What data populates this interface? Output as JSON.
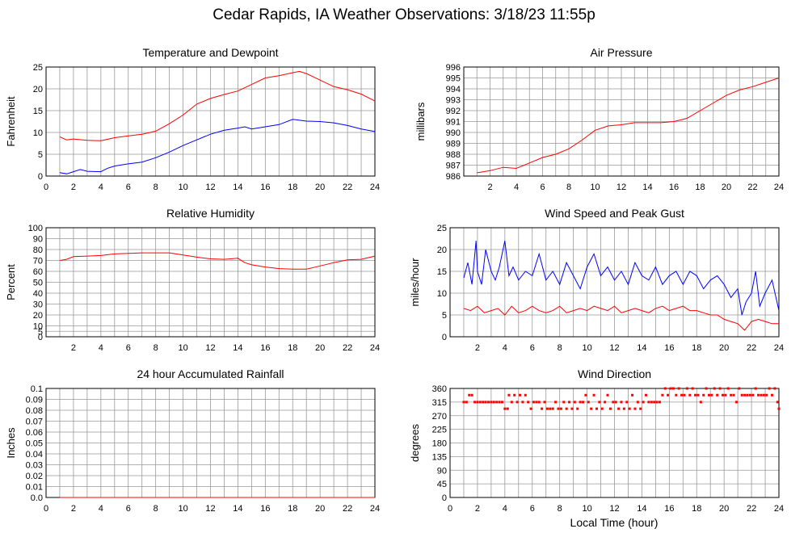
{
  "page_title": "Cedar Rapids, IA Weather Observations: 3/18/23 11:55p",
  "x_axis_label": "Local Time (hour)",
  "colors": {
    "red": "#ff0000",
    "blue": "#0000ff",
    "grid": "#999999",
    "frame": "#000000"
  },
  "chart_data": [
    {
      "id": "temp",
      "type": "line",
      "title": "Temperature and Dewpoint",
      "ylabel": "Fahrenheit",
      "xlim": [
        0,
        24
      ],
      "ylim": [
        0,
        25
      ],
      "x_ticks": [
        0,
        2,
        4,
        6,
        8,
        10,
        12,
        14,
        16,
        18,
        20,
        22,
        24
      ],
      "y_ticks": [
        0,
        5,
        10,
        15,
        20,
        25
      ],
      "grid": true,
      "series": [
        {
          "color": "#ff0000",
          "x": [
            1,
            1.5,
            2,
            3,
            4,
            5,
            6,
            7,
            8,
            9,
            10,
            11,
            12,
            13,
            14,
            15,
            16,
            17,
            18,
            18.5,
            19,
            20,
            21,
            22,
            23,
            24
          ],
          "y": [
            9,
            8.3,
            8.5,
            8.2,
            8.1,
            8.8,
            9.2,
            9.6,
            10.3,
            12,
            14,
            16.5,
            17.8,
            18.7,
            19.5,
            21,
            22.5,
            23,
            23.7,
            24,
            23.5,
            22,
            20.5,
            19.8,
            18.8,
            17.2
          ]
        },
        {
          "color": "#0000ff",
          "x": [
            1,
            1.5,
            2,
            2.5,
            3,
            4,
            4.5,
            5,
            6,
            7,
            8,
            9,
            10,
            11,
            12,
            13,
            14,
            14.5,
            15,
            16,
            17,
            18,
            19,
            20,
            21,
            22,
            23,
            24
          ],
          "y": [
            0.8,
            0.5,
            1,
            1.5,
            1.1,
            1,
            1.8,
            2.3,
            2.8,
            3.2,
            4.2,
            5.5,
            7,
            8.3,
            9.6,
            10.5,
            11,
            11.3,
            10.8,
            11.3,
            11.8,
            13,
            12.6,
            12.5,
            12.2,
            11.6,
            10.8,
            10.2
          ]
        }
      ]
    },
    {
      "id": "pressure",
      "type": "line",
      "title": "Air Pressure",
      "ylabel": "millibars",
      "xlim": [
        0,
        24
      ],
      "ylim": [
        986,
        996
      ],
      "x_ticks": [
        2,
        4,
        6,
        8,
        10,
        12,
        14,
        16,
        18,
        20,
        22,
        24
      ],
      "y_ticks": [
        986,
        987,
        988,
        989,
        990,
        991,
        992,
        993,
        994,
        995,
        996
      ],
      "grid": true,
      "series": [
        {
          "color": "#ff0000",
          "x": [
            1,
            2,
            3,
            4,
            5,
            6,
            7,
            8,
            9,
            10,
            11,
            12,
            13,
            14,
            15,
            16,
            17,
            18,
            19,
            20,
            21,
            22,
            23,
            24
          ],
          "y": [
            986.3,
            986.5,
            986.8,
            986.7,
            987.2,
            987.7,
            988,
            988.5,
            989.3,
            990.2,
            990.6,
            990.7,
            990.9,
            990.9,
            990.9,
            991,
            991.3,
            992,
            992.7,
            993.4,
            993.9,
            994.2,
            994.6,
            995
          ]
        }
      ]
    },
    {
      "id": "humidity",
      "type": "line",
      "title": "Relative Humidity",
      "ylabel": "Percent",
      "xlim": [
        0,
        24
      ],
      "ylim": [
        0,
        100
      ],
      "x_ticks": [
        2,
        4,
        6,
        8,
        10,
        12,
        14,
        16,
        18,
        20,
        22,
        24
      ],
      "y_ticks": [
        0,
        5,
        10,
        20,
        30,
        40,
        50,
        60,
        70,
        80,
        90,
        100
      ],
      "grid": true,
      "series": [
        {
          "color": "#ff0000",
          "x": [
            1,
            1.5,
            2,
            3,
            4,
            5,
            6,
            7,
            8,
            9,
            10,
            11,
            12,
            13,
            14,
            14.5,
            15,
            16,
            17,
            18,
            19,
            20,
            21,
            22,
            23,
            24
          ],
          "y": [
            70,
            71,
            73.5,
            74,
            74.5,
            76,
            76.5,
            77,
            77,
            77,
            75,
            73,
            71.5,
            71,
            72,
            68,
            66,
            64,
            62.5,
            62,
            62,
            65,
            68,
            70.5,
            71,
            74
          ]
        }
      ]
    },
    {
      "id": "wind",
      "type": "line",
      "title": "Wind Speed and Peak Gust",
      "ylabel": "miles/hour",
      "xlim": [
        0,
        24
      ],
      "ylim": [
        0,
        25
      ],
      "x_ticks": [
        2,
        4,
        6,
        8,
        10,
        12,
        14,
        16,
        18,
        20,
        22,
        24
      ],
      "y_ticks": [
        0,
        5,
        10,
        15,
        20,
        25
      ],
      "grid": true,
      "series": [
        {
          "color": "#0000ff",
          "x": [
            1,
            1.3,
            1.6,
            1.9,
            2,
            2.3,
            2.6,
            3,
            3.3,
            3.6,
            4,
            4.3,
            4.6,
            5,
            5.5,
            6,
            6.5,
            7,
            7.5,
            8,
            8.5,
            9,
            9.5,
            10,
            10.5,
            11,
            11.5,
            12,
            12.5,
            13,
            13.5,
            14,
            14.5,
            15,
            15.5,
            16,
            16.5,
            17,
            17.5,
            18,
            18.5,
            19,
            19.5,
            20,
            20.5,
            21,
            21.3,
            21.6,
            22,
            22.3,
            22.6,
            23,
            23.5,
            24
          ],
          "y": [
            13.5,
            17,
            12,
            22,
            15,
            12,
            20,
            15,
            13,
            16,
            22,
            14,
            16,
            13,
            15,
            14,
            19,
            13,
            15,
            12,
            17,
            14,
            11,
            16,
            19,
            14,
            16,
            13,
            15,
            12,
            17,
            14,
            13,
            16,
            12,
            14,
            15,
            12,
            15,
            14,
            11,
            13,
            14,
            12,
            9,
            11,
            5,
            8,
            10,
            15,
            7,
            10,
            13,
            6
          ]
        },
        {
          "color": "#ff0000",
          "x": [
            1,
            1.5,
            2,
            2.5,
            3,
            3.5,
            4,
            4.5,
            5,
            5.5,
            6,
            6.5,
            7,
            7.5,
            8,
            8.5,
            9,
            9.5,
            10,
            10.5,
            11,
            11.5,
            12,
            12.5,
            13,
            13.5,
            14,
            14.5,
            15,
            15.5,
            16,
            16.5,
            17,
            17.5,
            18,
            18.5,
            19,
            19.5,
            20,
            20.5,
            21,
            21.5,
            22,
            22.5,
            23,
            23.5,
            24
          ],
          "y": [
            6.5,
            6,
            7,
            5.5,
            6,
            6.5,
            5,
            7,
            5.5,
            6,
            7,
            6,
            5.5,
            6,
            7,
            5.5,
            6,
            6.5,
            6,
            7,
            6.5,
            6,
            7,
            5.5,
            6,
            6.5,
            6,
            5.5,
            6.5,
            7,
            6,
            6.5,
            7,
            6,
            6,
            5.5,
            5,
            5,
            4,
            3.5,
            3,
            1.5,
            3.5,
            4,
            3.5,
            3,
            3
          ]
        }
      ]
    },
    {
      "id": "rain",
      "type": "line",
      "title": "24 hour Accumulated Rainfall",
      "ylabel": "Inches",
      "xlim": [
        0,
        24
      ],
      "ylim": [
        0,
        0.1
      ],
      "x_ticks": [
        0,
        2,
        4,
        6,
        8,
        10,
        12,
        14,
        16,
        18,
        20,
        22,
        24
      ],
      "y_ticks": [
        "0.0",
        "0.01",
        "0.02",
        "0.03",
        "0.04",
        "0.05",
        "0.06",
        "0.07",
        "0.08",
        "0.09",
        "0.1"
      ],
      "grid": true,
      "series": [
        {
          "color": "#ff0000",
          "x": [
            1,
            24
          ],
          "y": [
            0,
            0
          ]
        }
      ]
    },
    {
      "id": "direction",
      "type": "scatter",
      "title": "Wind Direction",
      "ylabel": "degrees",
      "xlim": [
        0,
        24
      ],
      "ylim": [
        0,
        360
      ],
      "x_ticks": [
        0,
        2,
        4,
        6,
        8,
        10,
        12,
        14,
        16,
        18,
        20,
        22,
        24
      ],
      "y_ticks": [
        0,
        45,
        90,
        135,
        180,
        225,
        270,
        315,
        360
      ],
      "grid": true,
      "points": [
        {
          "x": 1.0,
          "y": 315
        },
        {
          "x": 1.2,
          "y": 315
        },
        {
          "x": 1.4,
          "y": 338
        },
        {
          "x": 1.6,
          "y": 338
        },
        {
          "x": 1.8,
          "y": 315
        },
        {
          "x": 2.0,
          "y": 315
        },
        {
          "x": 2.2,
          "y": 315
        },
        {
          "x": 2.4,
          "y": 315
        },
        {
          "x": 2.6,
          "y": 315
        },
        {
          "x": 2.8,
          "y": 315
        },
        {
          "x": 3.0,
          "y": 315
        },
        {
          "x": 3.2,
          "y": 315
        },
        {
          "x": 3.4,
          "y": 315
        },
        {
          "x": 3.6,
          "y": 315
        },
        {
          "x": 3.8,
          "y": 315
        },
        {
          "x": 4.0,
          "y": 293
        },
        {
          "x": 4.2,
          "y": 293
        },
        {
          "x": 4.3,
          "y": 338
        },
        {
          "x": 4.5,
          "y": 315
        },
        {
          "x": 4.7,
          "y": 338
        },
        {
          "x": 4.9,
          "y": 315
        },
        {
          "x": 5.1,
          "y": 338
        },
        {
          "x": 5.3,
          "y": 315
        },
        {
          "x": 5.5,
          "y": 338
        },
        {
          "x": 5.7,
          "y": 315
        },
        {
          "x": 5.9,
          "y": 293
        },
        {
          "x": 6.1,
          "y": 315
        },
        {
          "x": 6.3,
          "y": 315
        },
        {
          "x": 6.5,
          "y": 315
        },
        {
          "x": 6.7,
          "y": 293
        },
        {
          "x": 6.9,
          "y": 315
        },
        {
          "x": 7.1,
          "y": 293
        },
        {
          "x": 7.3,
          "y": 293
        },
        {
          "x": 7.5,
          "y": 293
        },
        {
          "x": 7.7,
          "y": 315
        },
        {
          "x": 7.9,
          "y": 293
        },
        {
          "x": 8.1,
          "y": 293
        },
        {
          "x": 8.3,
          "y": 315
        },
        {
          "x": 8.5,
          "y": 293
        },
        {
          "x": 8.7,
          "y": 315
        },
        {
          "x": 8.9,
          "y": 293
        },
        {
          "x": 9.1,
          "y": 315
        },
        {
          "x": 9.3,
          "y": 293
        },
        {
          "x": 9.5,
          "y": 315
        },
        {
          "x": 9.7,
          "y": 315
        },
        {
          "x": 9.9,
          "y": 338
        },
        {
          "x": 10.1,
          "y": 315
        },
        {
          "x": 10.3,
          "y": 293
        },
        {
          "x": 10.5,
          "y": 338
        },
        {
          "x": 10.7,
          "y": 293
        },
        {
          "x": 10.9,
          "y": 315
        },
        {
          "x": 11.1,
          "y": 293
        },
        {
          "x": 11.3,
          "y": 315
        },
        {
          "x": 11.5,
          "y": 338
        },
        {
          "x": 11.7,
          "y": 293
        },
        {
          "x": 11.9,
          "y": 315
        },
        {
          "x": 12.1,
          "y": 315
        },
        {
          "x": 12.3,
          "y": 293
        },
        {
          "x": 12.5,
          "y": 315
        },
        {
          "x": 12.7,
          "y": 293
        },
        {
          "x": 12.9,
          "y": 315
        },
        {
          "x": 13.1,
          "y": 293
        },
        {
          "x": 13.3,
          "y": 338
        },
        {
          "x": 13.5,
          "y": 293
        },
        {
          "x": 13.7,
          "y": 315
        },
        {
          "x": 13.9,
          "y": 293
        },
        {
          "x": 14.1,
          "y": 315
        },
        {
          "x": 14.3,
          "y": 338
        },
        {
          "x": 14.5,
          "y": 315
        },
        {
          "x": 14.7,
          "y": 315
        },
        {
          "x": 14.9,
          "y": 315
        },
        {
          "x": 15.1,
          "y": 315
        },
        {
          "x": 15.3,
          "y": 315
        },
        {
          "x": 15.5,
          "y": 338
        },
        {
          "x": 15.7,
          "y": 360
        },
        {
          "x": 15.9,
          "y": 338
        },
        {
          "x": 16.1,
          "y": 360
        },
        {
          "x": 16.3,
          "y": 360
        },
        {
          "x": 16.5,
          "y": 338
        },
        {
          "x": 16.7,
          "y": 360
        },
        {
          "x": 16.9,
          "y": 338
        },
        {
          "x": 17.1,
          "y": 338
        },
        {
          "x": 17.3,
          "y": 360
        },
        {
          "x": 17.5,
          "y": 338
        },
        {
          "x": 17.7,
          "y": 360
        },
        {
          "x": 17.9,
          "y": 338
        },
        {
          "x": 18.1,
          "y": 338
        },
        {
          "x": 18.3,
          "y": 315
        },
        {
          "x": 18.5,
          "y": 338
        },
        {
          "x": 18.7,
          "y": 360
        },
        {
          "x": 18.9,
          "y": 338
        },
        {
          "x": 19.1,
          "y": 338
        },
        {
          "x": 19.3,
          "y": 360
        },
        {
          "x": 19.5,
          "y": 338
        },
        {
          "x": 19.7,
          "y": 360
        },
        {
          "x": 19.9,
          "y": 338
        },
        {
          "x": 20.1,
          "y": 338
        },
        {
          "x": 20.3,
          "y": 360
        },
        {
          "x": 20.5,
          "y": 338
        },
        {
          "x": 20.7,
          "y": 338
        },
        {
          "x": 20.9,
          "y": 315
        },
        {
          "x": 21.1,
          "y": 360
        },
        {
          "x": 21.3,
          "y": 338
        },
        {
          "x": 21.5,
          "y": 338
        },
        {
          "x": 21.7,
          "y": 338
        },
        {
          "x": 21.9,
          "y": 338
        },
        {
          "x": 22.1,
          "y": 338
        },
        {
          "x": 22.3,
          "y": 360
        },
        {
          "x": 22.5,
          "y": 338
        },
        {
          "x": 22.7,
          "y": 338
        },
        {
          "x": 22.9,
          "y": 338
        },
        {
          "x": 23.1,
          "y": 338
        },
        {
          "x": 23.3,
          "y": 360
        },
        {
          "x": 23.5,
          "y": 338
        },
        {
          "x": 23.7,
          "y": 360
        },
        {
          "x": 23.9,
          "y": 315
        },
        {
          "x": 24.0,
          "y": 293
        }
      ]
    }
  ]
}
